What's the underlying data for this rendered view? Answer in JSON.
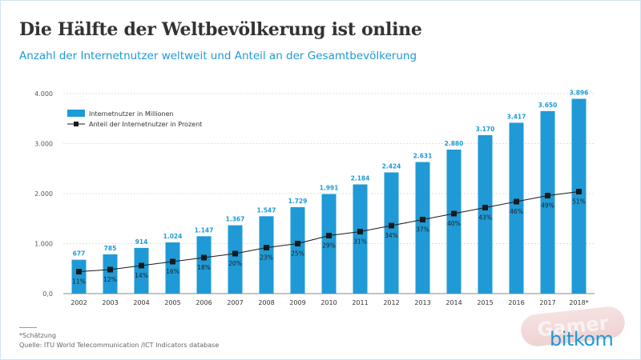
{
  "header": {
    "title": "Die Hälfte der Weltbevölkerung ist online",
    "subtitle": "Anzahl der Internetnutzer weltweit und Anteil an der Gesamtbevölkerung"
  },
  "footer": {
    "note": "*Schätzung",
    "source": "Quelle: ITU World Telecommunication /ICT Indicators database"
  },
  "watermark": {
    "text": "Gamer"
  },
  "logo": {
    "text": "bitkom"
  },
  "colors": {
    "bar": "#1f9ad6",
    "line": "#1a1a1a",
    "accent": "#1f9ad6"
  },
  "chart_data": {
    "type": "bar",
    "categories": [
      "2002",
      "2003",
      "2004",
      "2005",
      "2006",
      "2007",
      "2008",
      "2009",
      "2010",
      "2011",
      "2012",
      "2013",
      "2014",
      "2015",
      "2016",
      "2017",
      "2018*"
    ],
    "ylim": [
      0,
      4000
    ],
    "yticks": [
      "0,0",
      "1.000",
      "2.000",
      "3.000",
      "4.000"
    ],
    "ytick_values": [
      0,
      1000,
      2000,
      3000,
      4000
    ],
    "grid": true,
    "legend_position": "top-left",
    "series": [
      {
        "name": "Internetnutzer in Millionen",
        "type": "bar",
        "values": [
          677,
          785,
          914,
          1024,
          1147,
          1367,
          1547,
          1729,
          1991,
          2184,
          2424,
          2631,
          2880,
          3170,
          3417,
          3650,
          3896
        ],
        "labels": [
          "677",
          "785",
          "914",
          "1.024",
          "1.147",
          "1.367",
          "1.547",
          "1.729",
          "1.991",
          "2.184",
          "2.424",
          "2.631",
          "2.880",
          "3.170",
          "3.417",
          "3.650",
          "3.896"
        ]
      },
      {
        "name": "Anteil der Internetnutzer in Prozent",
        "type": "line",
        "values": [
          11,
          12,
          14,
          16,
          18,
          20,
          23,
          25,
          29,
          31,
          34,
          37,
          40,
          43,
          46,
          49,
          51
        ],
        "labels": [
          "11%",
          "12%",
          "14%",
          "16%",
          "18%",
          "20%",
          "23%",
          "25%",
          "29%",
          "31%",
          "34%",
          "37%",
          "40%",
          "43%",
          "46%",
          "49%",
          "51%"
        ]
      }
    ]
  }
}
